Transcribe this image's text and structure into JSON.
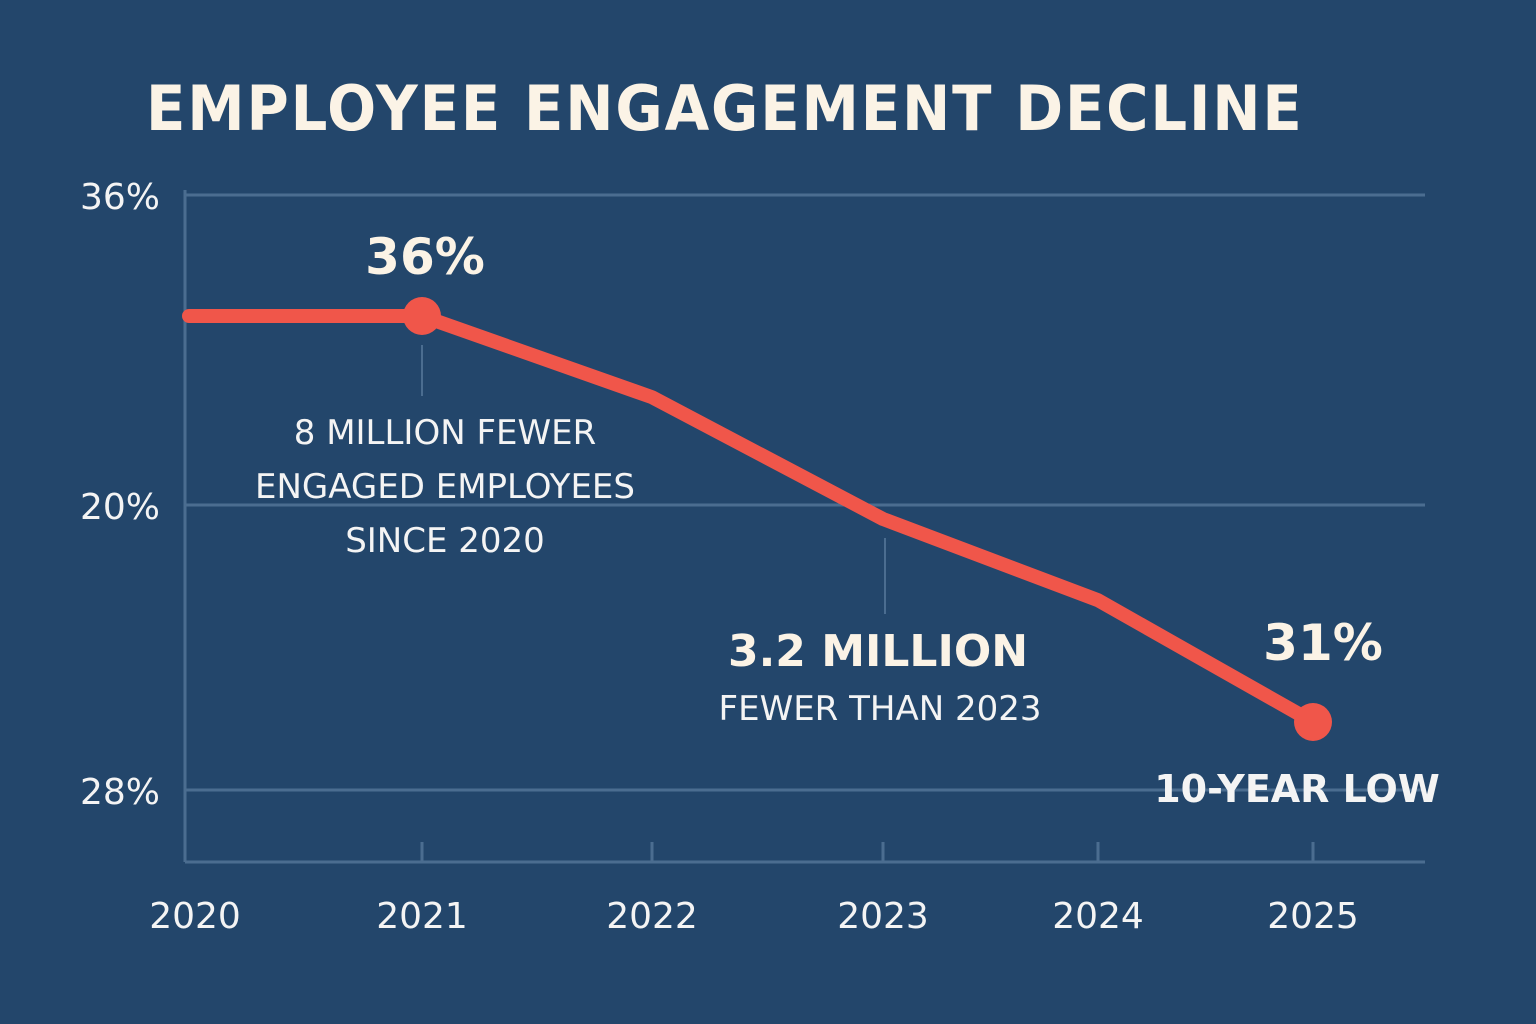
{
  "chart_data": {
    "type": "line",
    "title": "EMPLOYEE ENGAGEMENT DECLINE",
    "xlabel": "",
    "ylabel": "",
    "x": [
      "2020",
      "2021",
      "2022",
      "2023",
      "2024",
      "2025"
    ],
    "series": [
      {
        "name": "Employee engagement",
        "values": [
          36,
          36,
          35.0,
          33.5,
          32.5,
          31
        ],
        "color": "#f0564a"
      }
    ],
    "y_tick_labels": [
      "36%",
      "20%",
      "28%"
    ],
    "grid": true,
    "markers": [
      {
        "x": "2021",
        "value": 36
      },
      {
        "x": "2025",
        "value": 31
      }
    ],
    "annotations": {
      "peak_value": "36%",
      "since_2020": [
        "8 MILLION FEWER",
        "ENGAGED EMPLOYEES",
        "SINCE 2020"
      ],
      "change_2023_headline": "3.2 MILLION",
      "change_2023_sub": "FEWER THAN 2023",
      "low_value": "31%",
      "low_note": "10-YEAR LOW"
    },
    "legend": "none"
  },
  "colors": {
    "background": "#23466b",
    "line": "#f0564a",
    "grid": "#4b6d90",
    "title": "#fbf3e6"
  }
}
